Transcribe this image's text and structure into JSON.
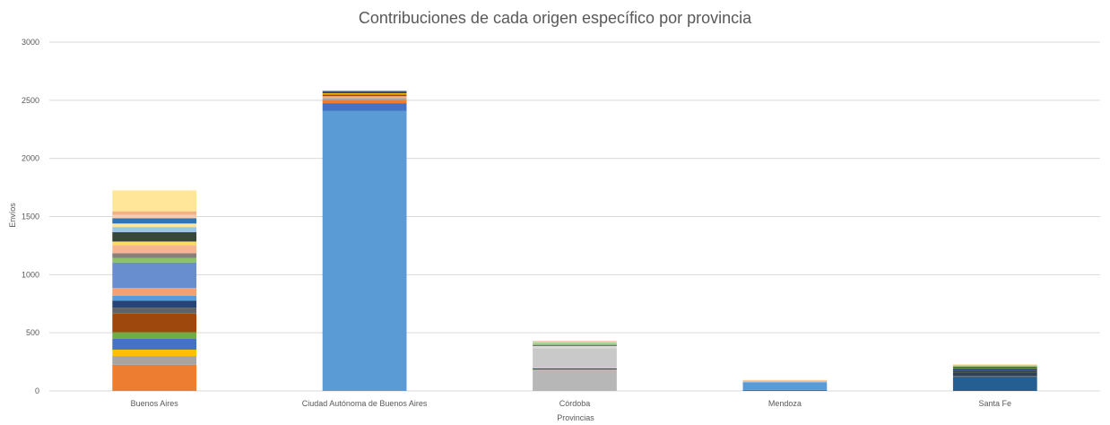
{
  "chart_data": {
    "type": "bar",
    "stacked": true,
    "title": "Contribuciones de cada origen específico por provincia",
    "xlabel": "Provincias",
    "ylabel": "Envíos",
    "ylim": [
      0,
      3000
    ],
    "yticks": [
      0,
      500,
      1000,
      1500,
      2000,
      2500,
      3000
    ],
    "grid": true,
    "categories": [
      "Buenos Aires",
      "Ciudad Autónoma de Buenos Aires",
      "Córdoba",
      "Mendoza",
      "Santa Fe"
    ],
    "stacks": [
      {
        "category": "Buenos Aires",
        "segments": [
          {
            "value": 225,
            "color": "#ED7D31"
          },
          {
            "value": 75,
            "color": "#A5A5A5"
          },
          {
            "value": 55,
            "color": "#FFC000"
          },
          {
            "value": 95,
            "color": "#4472C4"
          },
          {
            "value": 55,
            "color": "#70AD47"
          },
          {
            "value": 160,
            "color": "#9E480E"
          },
          {
            "value": 50,
            "color": "#636363"
          },
          {
            "value": 60,
            "color": "#264478"
          },
          {
            "value": 45,
            "color": "#5B9BD5"
          },
          {
            "value": 65,
            "color": "#F4A070"
          },
          {
            "value": 220,
            "color": "#698ED0"
          },
          {
            "value": 40,
            "color": "#8CC168"
          },
          {
            "value": 40,
            "color": "#8A7F7C"
          },
          {
            "value": 70,
            "color": "#F7B58F"
          },
          {
            "value": 30,
            "color": "#FFD966"
          },
          {
            "value": 80,
            "color": "#37483A"
          },
          {
            "value": 45,
            "color": "#9DC3E6"
          },
          {
            "value": 30,
            "color": "#FBE5A2"
          },
          {
            "value": 45,
            "color": "#2E75B6"
          },
          {
            "value": 30,
            "color": "#F8CBAD"
          },
          {
            "value": 30,
            "color": "#F4B183"
          },
          {
            "value": 180,
            "color": "#FFE699"
          }
        ]
      },
      {
        "category": "Ciudad Autónoma de Buenos Aires",
        "segments": [
          {
            "value": 2410,
            "color": "#5B9BD5"
          },
          {
            "value": 65,
            "color": "#4472C4"
          },
          {
            "value": 30,
            "color": "#ED7D31"
          },
          {
            "value": 15,
            "color": "#A5A5A5"
          },
          {
            "value": 15,
            "color": "#F4B183"
          },
          {
            "value": 15,
            "color": "#9E480E"
          },
          {
            "value": 10,
            "color": "#FFC000"
          },
          {
            "value": 10,
            "color": "#37483A"
          },
          {
            "value": 10,
            "color": "#264478"
          }
        ]
      },
      {
        "category": "Córdoba",
        "segments": [
          {
            "value": 185,
            "color": "#B7B7B7"
          },
          {
            "value": 8,
            "color": "#264478"
          },
          {
            "value": 175,
            "color": "#C9C9C9"
          },
          {
            "value": 20,
            "color": "#D9D9D9"
          },
          {
            "value": 8,
            "color": "#37483A"
          },
          {
            "value": 20,
            "color": "#A9D18E"
          },
          {
            "value": 10,
            "color": "#C5E0B4"
          },
          {
            "value": 4,
            "color": "#F4B183"
          }
        ]
      },
      {
        "category": "Mendoza",
        "segments": [
          {
            "value": 10,
            "color": "#2E75B6"
          },
          {
            "value": 65,
            "color": "#5B9BD5"
          },
          {
            "value": 8,
            "color": "#9DC3E6"
          },
          {
            "value": 7,
            "color": "#F4B183"
          },
          {
            "value": 5,
            "color": "#FFE699"
          }
        ]
      },
      {
        "category": "Santa Fe",
        "segments": [
          {
            "value": 120,
            "color": "#255E91"
          },
          {
            "value": 10,
            "color": "#636363"
          },
          {
            "value": 25,
            "color": "#2E4057"
          },
          {
            "value": 20,
            "color": "#37483A"
          },
          {
            "value": 15,
            "color": "#264478"
          },
          {
            "value": 10,
            "color": "#548235"
          },
          {
            "value": 10,
            "color": "#7F6000"
          },
          {
            "value": 8,
            "color": "#A9D18E"
          },
          {
            "value": 7,
            "color": "#F4B183"
          },
          {
            "value": 5,
            "color": "#FFE699"
          }
        ]
      }
    ]
  }
}
